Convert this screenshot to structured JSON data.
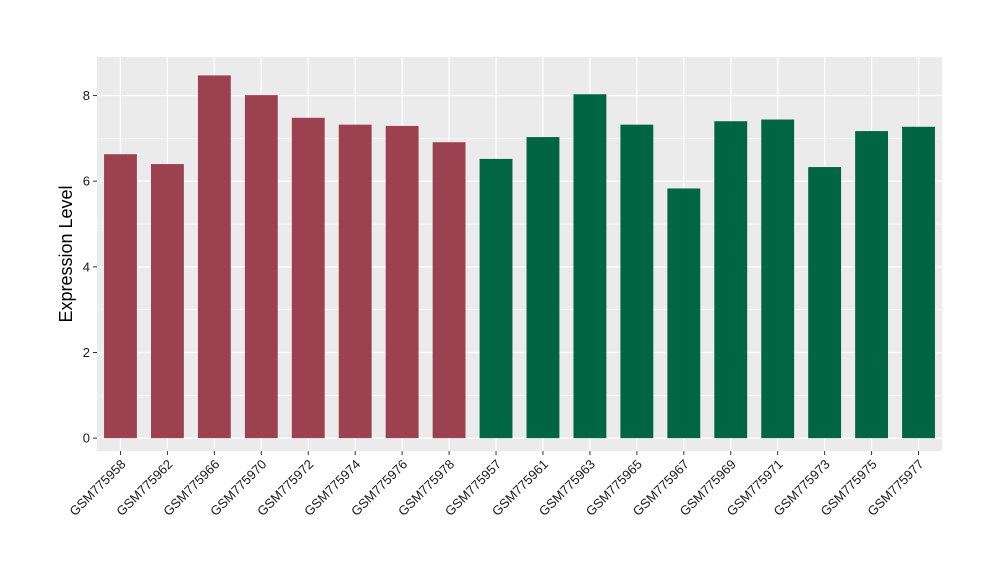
{
  "chart_data": {
    "type": "bar",
    "title": "",
    "xlabel": "",
    "ylabel": "Expression Level",
    "ylim": [
      -0.3,
      8.9
    ],
    "yticks": [
      0,
      2,
      4,
      6,
      8
    ],
    "grid": true,
    "categories": [
      "GSM775958",
      "GSM775962",
      "GSM775966",
      "GSM775970",
      "GSM775972",
      "GSM775974",
      "GSM775976",
      "GSM775978",
      "GSM775957",
      "GSM775961",
      "GSM775963",
      "GSM775965",
      "GSM775967",
      "GSM775969",
      "GSM775971",
      "GSM775973",
      "GSM775975",
      "GSM775977"
    ],
    "values": [
      6.63,
      6.4,
      8.47,
      8.01,
      7.48,
      7.32,
      7.29,
      6.91,
      6.52,
      7.03,
      8.03,
      7.32,
      5.83,
      7.4,
      7.44,
      6.33,
      7.17,
      7.27
    ],
    "groups": [
      0,
      0,
      0,
      0,
      0,
      0,
      0,
      0,
      1,
      1,
      1,
      1,
      1,
      1,
      1,
      1,
      1,
      1
    ],
    "group_colors": [
      "#9B4150",
      "#006543"
    ],
    "panel_background": "#EBEBEB",
    "grid_color": "#FFFFFF"
  }
}
